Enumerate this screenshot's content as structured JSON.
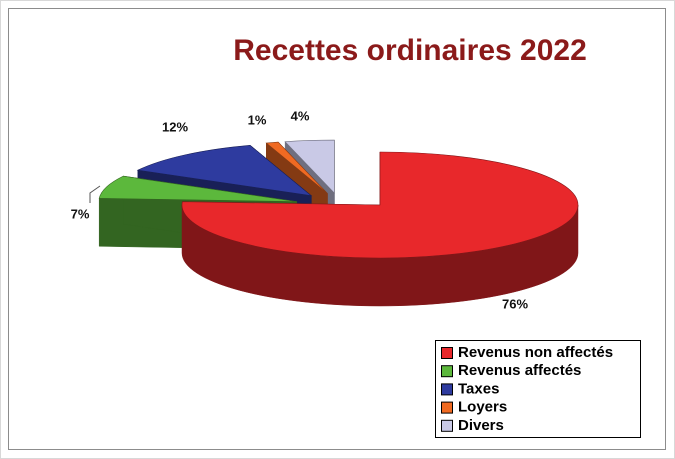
{
  "chart_data": {
    "type": "pie3d",
    "title": "Recettes ordinaires 2022",
    "categories": [
      "Revenus non affectés",
      "Revenus affectés",
      "Taxes",
      "Loyers",
      "Divers"
    ],
    "values": [
      76,
      7,
      12,
      1,
      4
    ],
    "value_labels": [
      "76%",
      "7%",
      "12%",
      "1%",
      "4%"
    ],
    "colors": [
      "#e8282b",
      "#5cb83c",
      "#2e3b9f",
      "#f06a22",
      "#c9c9e6"
    ],
    "legend": "lower right"
  }
}
